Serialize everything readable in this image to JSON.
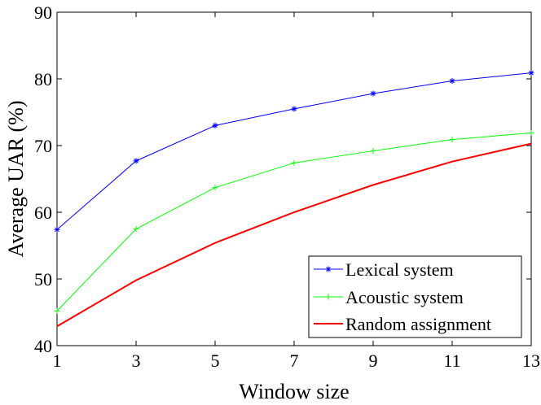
{
  "chart_data": {
    "type": "line",
    "x": [
      1,
      3,
      5,
      7,
      9,
      11,
      13
    ],
    "xlabel": "Window size",
    "ylabel": "Average UAR (%)",
    "xlim": [
      1,
      13
    ],
    "ylim": [
      40,
      90
    ],
    "xticks": [
      "1",
      "3",
      "5",
      "7",
      "9",
      "11",
      "13"
    ],
    "yticks": [
      "40",
      "50",
      "60",
      "70",
      "80",
      "90"
    ],
    "grid": false,
    "legend_position": "bottom-right",
    "series": [
      {
        "name": "Lexical system",
        "color": "#0000ff",
        "marker": "asterisk",
        "values": [
          57.4,
          67.7,
          73.0,
          75.5,
          77.8,
          79.7,
          80.9
        ]
      },
      {
        "name": "Acoustic system",
        "color": "#00ff00",
        "marker": "plus",
        "values": [
          45.2,
          57.5,
          63.7,
          67.4,
          69.2,
          70.9,
          71.9
        ]
      },
      {
        "name": "Random assignment",
        "color": "#ff0000",
        "marker": "none",
        "values": [
          42.9,
          49.8,
          55.4,
          60.0,
          64.1,
          67.6,
          70.3
        ]
      }
    ]
  }
}
